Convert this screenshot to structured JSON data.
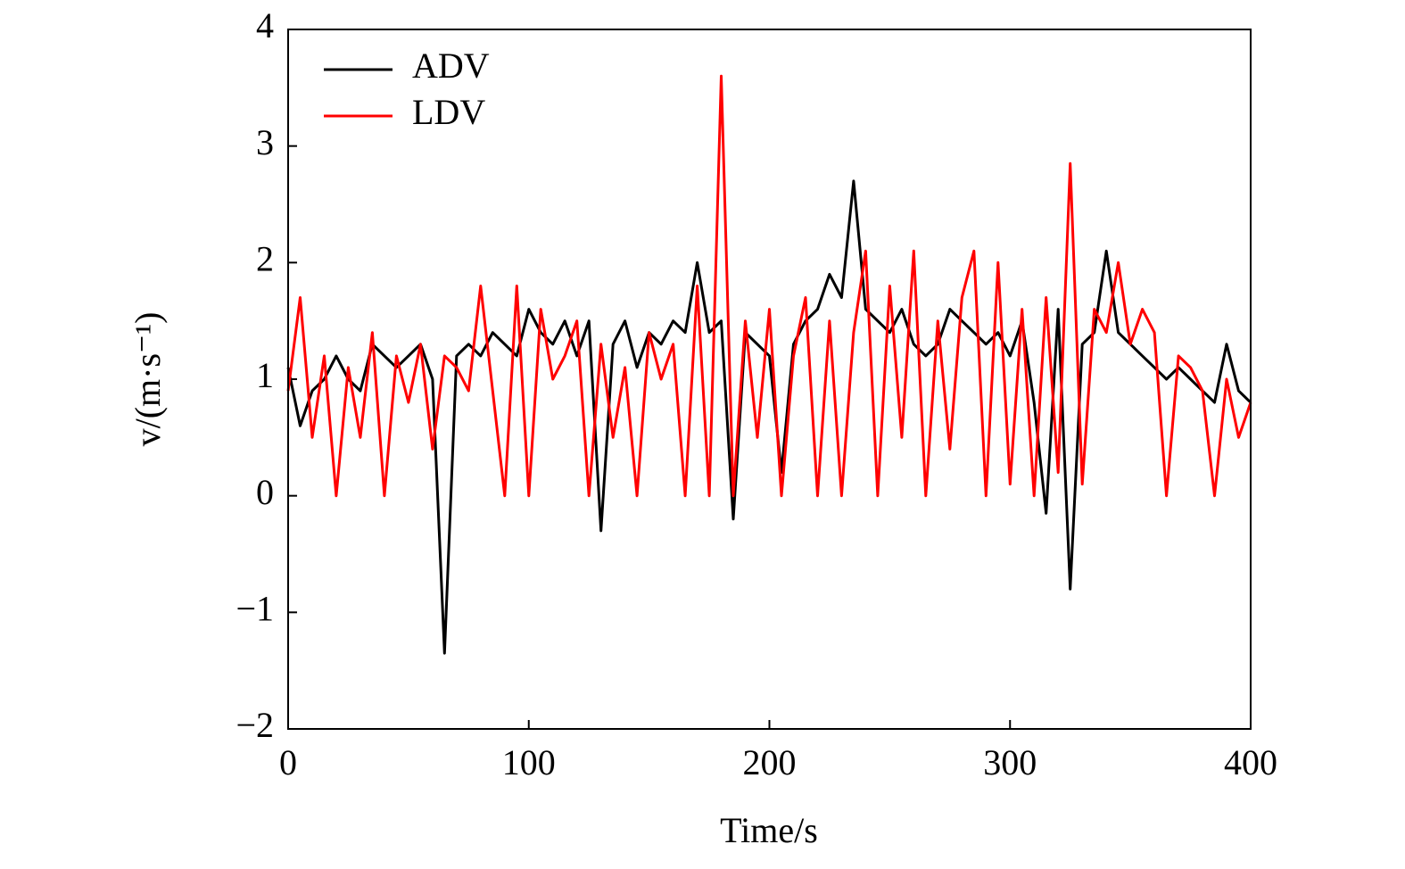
{
  "chart_data": {
    "type": "line",
    "x_label": "Time/s",
    "y_label": "v/(m·s⁻¹)",
    "x": [
      0,
      5,
      10,
      15,
      20,
      25,
      30,
      35,
      40,
      45,
      50,
      55,
      60,
      65,
      70,
      75,
      80,
      85,
      90,
      95,
      100,
      105,
      110,
      115,
      120,
      125,
      130,
      135,
      140,
      145,
      150,
      155,
      160,
      165,
      170,
      175,
      180,
      185,
      190,
      195,
      200,
      205,
      210,
      215,
      220,
      225,
      230,
      235,
      240,
      245,
      250,
      255,
      260,
      265,
      270,
      275,
      280,
      285,
      290,
      295,
      300,
      305,
      310,
      315,
      320,
      325,
      330,
      335,
      340,
      345,
      350,
      355,
      360,
      365,
      370,
      375,
      380,
      385,
      390,
      395,
      400
    ],
    "series": [
      {
        "name": "ADV",
        "color": "#000000",
        "values": [
          1.1,
          0.6,
          0.9,
          1.0,
          1.2,
          1.0,
          0.9,
          1.3,
          1.2,
          1.1,
          1.2,
          1.3,
          1.0,
          -1.35,
          1.2,
          1.3,
          1.2,
          1.4,
          1.3,
          1.2,
          1.6,
          1.4,
          1.3,
          1.5,
          1.2,
          1.5,
          -0.3,
          1.3,
          1.5,
          1.1,
          1.4,
          1.3,
          1.5,
          1.4,
          2.0,
          1.4,
          1.5,
          -0.2,
          1.4,
          1.3,
          1.2,
          0.2,
          1.3,
          1.5,
          1.6,
          1.9,
          1.7,
          2.7,
          1.6,
          1.5,
          1.4,
          1.6,
          1.3,
          1.2,
          1.3,
          1.6,
          1.5,
          1.4,
          1.3,
          1.4,
          1.2,
          1.5,
          0.8,
          -0.15,
          1.6,
          -0.8,
          1.3,
          1.4,
          2.1,
          1.4,
          1.3,
          1.2,
          1.1,
          1.0,
          1.1,
          1.0,
          0.9,
          0.8,
          1.3,
          0.9,
          0.8
        ]
      },
      {
        "name": "LDV",
        "color": "#ff0000",
        "values": [
          0.9,
          1.7,
          0.5,
          1.2,
          0.0,
          1.1,
          0.5,
          1.4,
          0.0,
          1.2,
          0.8,
          1.3,
          0.4,
          1.2,
          1.1,
          0.9,
          1.8,
          0.9,
          0.0,
          1.8,
          0.0,
          1.6,
          1.0,
          1.2,
          1.5,
          0.0,
          1.3,
          0.5,
          1.1,
          0.0,
          1.4,
          1.0,
          1.3,
          0.0,
          1.8,
          0.0,
          3.6,
          0.0,
          1.5,
          0.5,
          1.6,
          0.0,
          1.2,
          1.7,
          0.0,
          1.5,
          0.0,
          1.4,
          2.1,
          0.0,
          1.8,
          0.5,
          2.1,
          0.0,
          1.5,
          0.4,
          1.7,
          2.1,
          0.0,
          2.0,
          0.1,
          1.6,
          0.0,
          1.7,
          0.2,
          2.85,
          0.1,
          1.6,
          1.4,
          2.0,
          1.3,
          1.6,
          1.4,
          0.0,
          1.2,
          1.1,
          0.9,
          0.0,
          1.0,
          0.5,
          0.8
        ]
      }
    ],
    "xlim": [
      0,
      400
    ],
    "xticks": [
      0,
      100,
      200,
      300,
      400
    ],
    "ylim": [
      -2,
      4
    ],
    "yticks": [
      {
        "value": -2,
        "label": "−2"
      },
      {
        "value": -1,
        "label": "−1"
      },
      0,
      1,
      2,
      3,
      4
    ],
    "legend": "upper left"
  }
}
